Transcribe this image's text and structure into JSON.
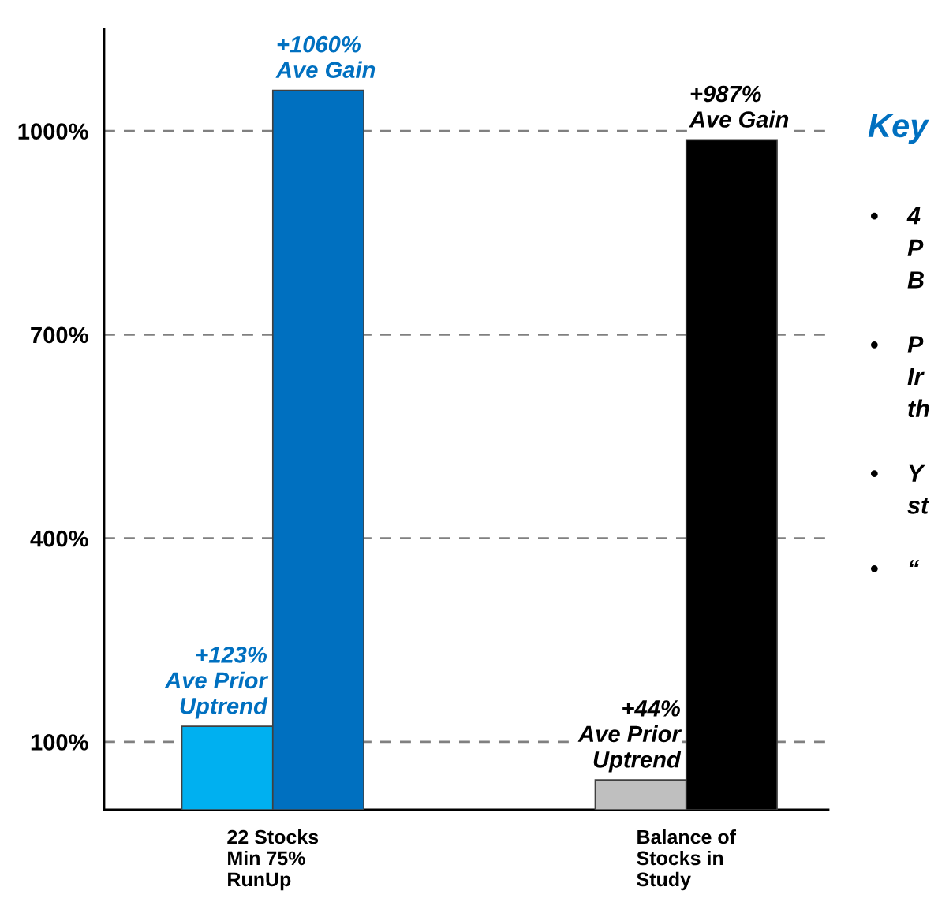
{
  "chart_data": {
    "type": "bar",
    "categories": [
      "22 Stocks\nMin 75%\nRunUp",
      "Balance of\nStocks in\nStudy"
    ],
    "series": [
      {
        "colors": [
          "#00b0f0",
          "#bfbfbf"
        ],
        "values": [
          123,
          44
        ],
        "value_labels": [
          "+123%\nAve Prior\nUptrend",
          "+44%\nAve Prior\nUptrend"
        ]
      },
      {
        "colors": [
          "#0070c0",
          "#000000"
        ],
        "values": [
          1060,
          987
        ],
        "value_labels": [
          "+1060%\nAve Gain",
          "+987%\nAve Gain"
        ]
      }
    ],
    "ylim": [
      0,
      1150
    ],
    "yticks": [
      {
        "value": 100,
        "label": "100%"
      },
      {
        "value": 400,
        "label": "400%"
      },
      {
        "value": 700,
        "label": "700%"
      },
      {
        "value": 1000,
        "label": "1000%"
      }
    ],
    "grid": "y",
    "annotations": [
      "Key",
      "•",
      "4\nP\nB",
      "•",
      "P\nIr\nth",
      "•",
      "Y\nst",
      "•",
      "“"
    ]
  }
}
